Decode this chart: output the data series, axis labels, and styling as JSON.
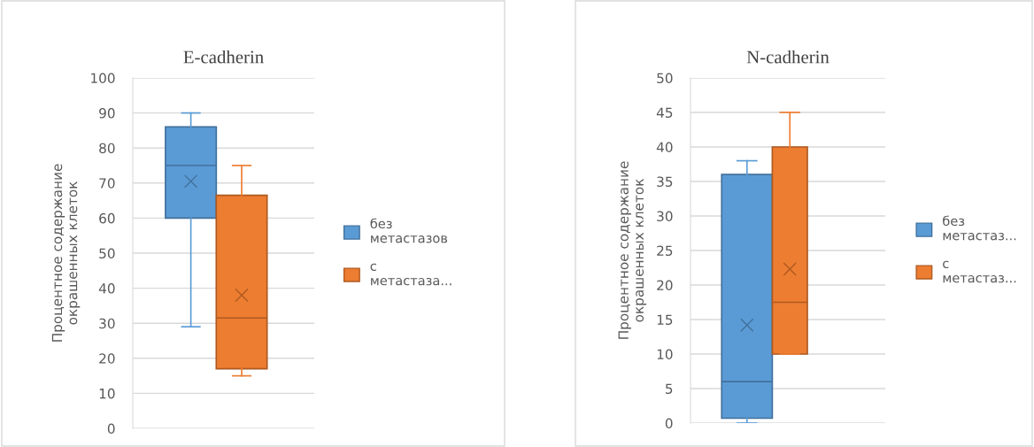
{
  "chart_data": [
    {
      "type": "box",
      "title": "E-cadherin",
      "ylabel": "Процентное содержание\nокрашенных клеток",
      "categories": [
        null
      ],
      "ylim": [
        0,
        100
      ],
      "yticks": [
        0,
        10,
        20,
        30,
        40,
        50,
        60,
        70,
        80,
        90,
        100
      ],
      "grid": "y",
      "legend": "right",
      "marker": "cross",
      "series": [
        {
          "name": "без\nметастазов",
          "color": "#5b9bd5",
          "boxes": [
            {
              "low": 29,
              "q1": 60,
              "median": 75,
              "q3": 86,
              "high": 90,
              "mean": 70.5
            }
          ]
        },
        {
          "name": "с\nметастаза...",
          "color": "#ed7d31",
          "boxes": [
            {
              "low": 15,
              "q1": 17,
              "median": 31.5,
              "q3": 66.5,
              "high": 75,
              "mean": 38
            }
          ]
        }
      ]
    },
    {
      "type": "box",
      "title": "N-cadherin",
      "ylabel": "Процентное содержание\nокрашенных клеток",
      "categories": [
        null
      ],
      "ylim": [
        0,
        50
      ],
      "yticks": [
        0,
        5,
        10,
        15,
        20,
        25,
        30,
        35,
        40,
        45,
        50
      ],
      "grid": "y",
      "legend": "right",
      "marker": "cross",
      "series": [
        {
          "name": "без\nметастаз...",
          "color": "#5b9bd5",
          "boxes": [
            {
              "low": 0,
              "q1": 0.7,
              "median": 6,
              "q3": 36,
              "high": 38,
              "mean": 14.2
            }
          ]
        },
        {
          "name": "с\nметастаз...",
          "color": "#ed7d31",
          "boxes": [
            {
              "low": 10,
              "q1": 10,
              "median": 17.5,
              "q3": 40,
              "high": 45,
              "mean": 22.3
            }
          ]
        }
      ]
    }
  ]
}
